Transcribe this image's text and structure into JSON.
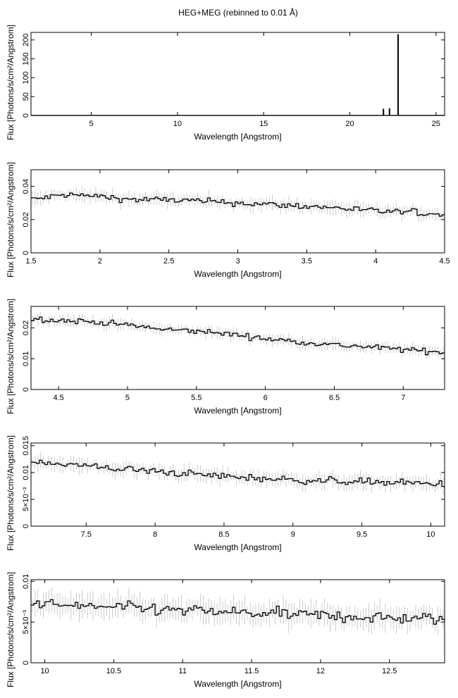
{
  "chart_data": [
    {
      "type": "line",
      "title": "HEG+MEG (rebinned to 0.01 Å)",
      "xlabel": "Wavelength [Angstrom]",
      "ylabel": "Flux [Photons/s/cm²/Angstrom]",
      "xlim": [
        1.5,
        25.5
      ],
      "ylim": [
        0,
        220
      ],
      "xticks": [
        5,
        10,
        15,
        20,
        25
      ],
      "xtick_labels": [
        "5",
        "10",
        "15",
        "20",
        "25"
      ],
      "yticks": [
        0,
        50,
        100,
        150,
        200
      ],
      "ytick_labels": [
        "0",
        "50",
        "100",
        "150",
        "200"
      ],
      "baseline": 0.5,
      "spikes": [
        {
          "x": 21.95,
          "y": 18
        },
        {
          "x": 22.3,
          "y": 19
        },
        {
          "x": 22.8,
          "y": 215
        }
      ]
    },
    {
      "type": "line",
      "xlabel": "Wavelength [Angstrom]",
      "ylabel": "Flux [Photons/s/cm²/Angstrom]",
      "xlim": [
        1.5,
        4.5
      ],
      "ylim": [
        0,
        0.05
      ],
      "xticks": [
        1.5,
        2,
        2.5,
        3,
        3.5,
        4,
        4.5
      ],
      "xtick_labels": [
        "1.5",
        "2",
        "2.5",
        "3",
        "3.5",
        "4",
        "4.5"
      ],
      "yticks": [
        0,
        0.02,
        0.04
      ],
      "ytick_labels": [
        "0",
        "0.02",
        "0.04"
      ],
      "x": [
        1.5,
        1.75,
        2.0,
        2.25,
        2.5,
        2.75,
        3.0,
        3.25,
        3.5,
        3.75,
        4.0,
        4.25,
        4.5
      ],
      "y": [
        0.032,
        0.035,
        0.034,
        0.032,
        0.032,
        0.031,
        0.03,
        0.029,
        0.028,
        0.027,
        0.025,
        0.0245,
        0.023
      ],
      "noise": 0.0035,
      "bin_width": 0.02
    },
    {
      "type": "line",
      "xlabel": "Wavelength [Angstrom]",
      "ylabel": "Flux [Photons/s/cm²/Angstrom]",
      "xlim": [
        4.3,
        7.3
      ],
      "ylim": [
        0,
        0.027
      ],
      "xticks": [
        4.5,
        5,
        5.5,
        6,
        6.5,
        7
      ],
      "xtick_labels": [
        "4.5",
        "5",
        "5.5",
        "6",
        "6.5",
        "7"
      ],
      "yticks": [
        0,
        0.01,
        0.02
      ],
      "ytick_labels": [
        "0",
        "0.01",
        "0.02"
      ],
      "x": [
        4.3,
        4.5,
        4.75,
        5.0,
        5.25,
        5.5,
        5.75,
        6.0,
        6.25,
        6.5,
        6.75,
        7.0,
        7.3
      ],
      "y": [
        0.023,
        0.0225,
        0.022,
        0.021,
        0.0195,
        0.019,
        0.018,
        0.0165,
        0.0155,
        0.0145,
        0.0138,
        0.013,
        0.012
      ],
      "noise": 0.0016,
      "bin_width": 0.02
    },
    {
      "type": "line",
      "xlabel": "Wavelength [Angstrom]",
      "ylabel": "Flux [Photons/s/cm²/Angstrom]",
      "xlim": [
        7.1,
        10.1
      ],
      "ylim": [
        0,
        0.0155
      ],
      "xticks": [
        7.5,
        8,
        8.5,
        9,
        9.5,
        10
      ],
      "xtick_labels": [
        "7.5",
        "8",
        "8.5",
        "9",
        "9.5",
        "10"
      ],
      "yticks": [
        0,
        0.005,
        0.01,
        0.015
      ],
      "ytick_labels": [
        "0",
        "5×10⁻³",
        "0.01",
        "0.015"
      ],
      "x": [
        7.1,
        7.5,
        8.0,
        8.5,
        9.0,
        9.5,
        10.1
      ],
      "y": [
        0.0122,
        0.0112,
        0.0102,
        0.0093,
        0.0086,
        0.0083,
        0.0078
      ],
      "noise": 0.0012,
      "bin_width": 0.02
    },
    {
      "type": "line",
      "xlabel": "Wavelength [Angstrom]",
      "ylabel": "Flux [Photons/s/cm²/Angstrom]",
      "xlim": [
        9.9,
        12.9
      ],
      "ylim": [
        0,
        0.0102
      ],
      "xticks": [
        10,
        10.5,
        11,
        11.5,
        12,
        12.5
      ],
      "xtick_labels": [
        "10",
        "10.5",
        "11",
        "11.5",
        "12",
        "12.5"
      ],
      "yticks": [
        0,
        0.005,
        0.01
      ],
      "ytick_labels": [
        "0",
        "5×10⁻³",
        "0.01"
      ],
      "x": [
        9.9,
        10.5,
        11.0,
        11.5,
        12.0,
        12.5,
        12.9
      ],
      "y": [
        0.0072,
        0.0068,
        0.0064,
        0.0061,
        0.0058,
        0.0055,
        0.0053
      ],
      "noise": 0.0013,
      "bin_width": 0.02
    }
  ]
}
